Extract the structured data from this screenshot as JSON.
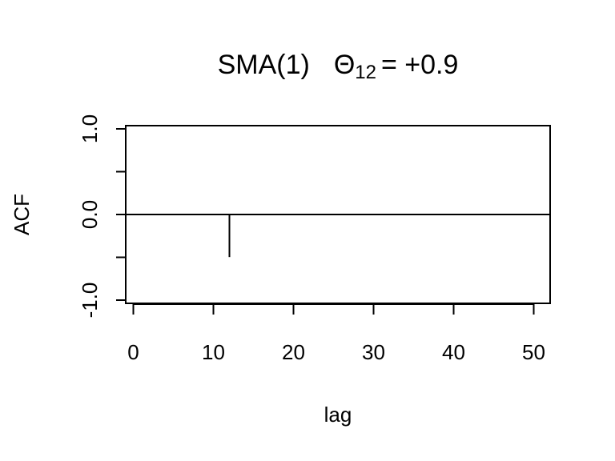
{
  "chart_data": {
    "type": "bar",
    "title": {
      "name": "SMA",
      "order": "(1)",
      "param_symbol": "Θ",
      "param_subscript": "12",
      "param_value": "= +0.9"
    },
    "xlabel": "lag",
    "ylabel": "ACF",
    "xlim": [
      -1,
      52
    ],
    "ylim": [
      -1.0,
      1.0
    ],
    "xticks": [
      0,
      10,
      20,
      30,
      40,
      50
    ],
    "xtick_labels": [
      "0",
      "10",
      "20",
      "30",
      "40",
      "50"
    ],
    "yticks": [
      -1.0,
      -0.5,
      0.0,
      0.5,
      1.0
    ],
    "ytick_labels": [
      "-1.0",
      "",
      "0.0",
      "",
      "1.0"
    ],
    "zero_line": true,
    "grid": false,
    "lags": [
      12
    ],
    "acf": [
      -0.497
    ]
  }
}
